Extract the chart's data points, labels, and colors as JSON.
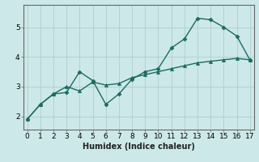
{
  "xlabel": "Humidex (Indice chaleur)",
  "ylabel": "",
  "background_color": "#cde8e8",
  "grid_color": "#aecece",
  "line_color": "#1a6b60",
  "x_line1": [
    0,
    1,
    2,
    3,
    4,
    5,
    6,
    7,
    8,
    9,
    10,
    11,
    12,
    13,
    14,
    15,
    16,
    17
  ],
  "y_line1": [
    1.9,
    2.4,
    2.75,
    2.8,
    3.5,
    3.2,
    2.4,
    2.75,
    3.25,
    3.5,
    3.6,
    4.3,
    4.6,
    5.3,
    5.25,
    5.0,
    4.7,
    3.9
  ],
  "x_line2": [
    0,
    1,
    2,
    3,
    4,
    5,
    6,
    7,
    8,
    9,
    10,
    11,
    12,
    13,
    14,
    15,
    16,
    17
  ],
  "y_line2": [
    1.9,
    2.4,
    2.75,
    3.0,
    2.85,
    3.15,
    3.05,
    3.1,
    3.3,
    3.4,
    3.5,
    3.6,
    3.7,
    3.8,
    3.85,
    3.9,
    3.95,
    3.9
  ],
  "xlim": [
    -0.3,
    17.3
  ],
  "ylim": [
    1.55,
    5.75
  ],
  "yticks": [
    2,
    3,
    4,
    5
  ],
  "xticks": [
    0,
    1,
    2,
    3,
    4,
    5,
    6,
    7,
    8,
    9,
    10,
    11,
    12,
    13,
    14,
    15,
    16,
    17
  ],
  "linewidth": 1.0,
  "fontsize_label": 7,
  "fontsize_tick": 6.5
}
